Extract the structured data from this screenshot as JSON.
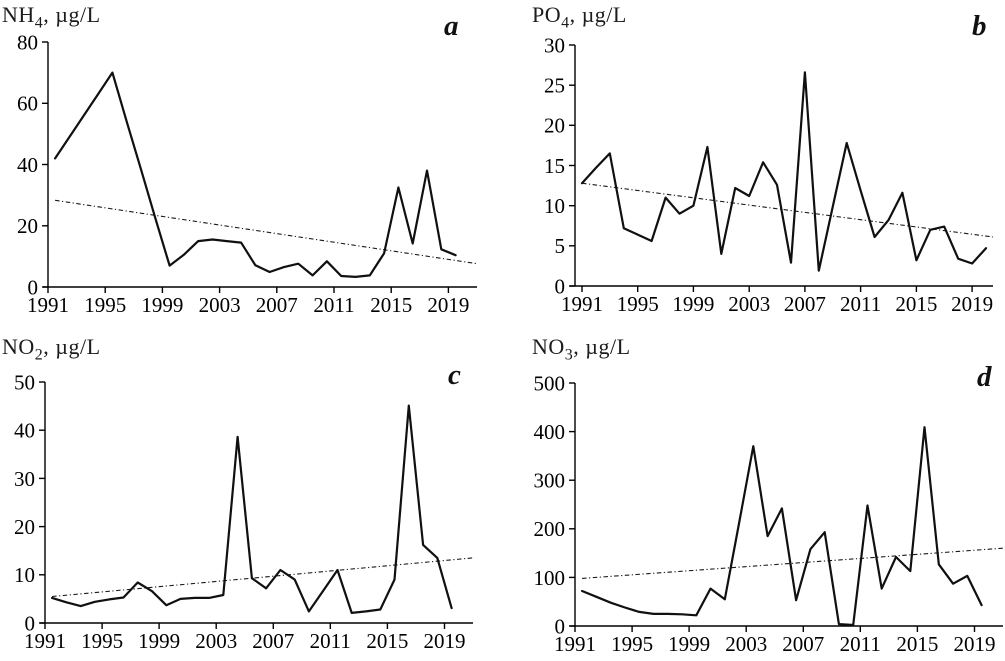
{
  "figure": {
    "background": "#ffffff",
    "panel_count": 4
  },
  "chart_data": [
    {
      "type": "line",
      "panel_label": "a",
      "title": {
        "prefix": "NH",
        "sub": "4",
        "unit": ", µg/L"
      },
      "x": [
        1991,
        1992,
        1993,
        1994,
        1995,
        1996,
        1997,
        1998,
        1999,
        2000,
        2001,
        2002,
        2003,
        2004,
        2005,
        2006,
        2007,
        2008,
        2009,
        2010,
        2011,
        2012,
        2013,
        2014,
        2015,
        2016,
        2017,
        2018,
        2019
      ],
      "values": [
        42,
        49,
        56,
        63,
        70,
        54,
        38.5,
        22.5,
        7,
        10.5,
        15,
        15.5,
        15,
        14.5,
        7.1,
        4.9,
        6.5,
        7.6,
        3.8,
        8.4,
        3.6,
        3.3,
        3.8,
        11,
        32.5,
        14.2,
        38,
        12.3,
        10.4
      ],
      "ylim": [
        0,
        80
      ],
      "yticks": [
        0,
        20,
        40,
        60,
        80
      ],
      "xticks": [
        1991,
        1995,
        1999,
        2003,
        2007,
        2011,
        2015,
        2019
      ],
      "trend": {
        "type": "linear-dashed",
        "start_value": 28.3,
        "end_value": 7.6
      },
      "colors": {
        "line": "#101010",
        "trend": "#1a1a1a"
      },
      "grid": false,
      "legend": false
    },
    {
      "type": "line",
      "panel_label": "b",
      "title": {
        "prefix": "PO",
        "sub": "4",
        "unit": ", µg/L"
      },
      "x": [
        1991,
        1992,
        1993,
        1994,
        1995,
        1996,
        1997,
        1998,
        1999,
        2000,
        2001,
        2002,
        2003,
        2004,
        2005,
        2006,
        2007,
        2008,
        2009,
        2010,
        2011,
        2012,
        2013,
        2014,
        2015,
        2016,
        2017,
        2018,
        2019,
        2020
      ],
      "values": [
        12.8,
        14.7,
        16.5,
        7.2,
        6.4,
        5.6,
        11,
        9,
        10,
        17.3,
        4,
        12.2,
        11.2,
        15.4,
        12.6,
        2.9,
        26.6,
        1.9,
        9.9,
        17.8,
        11.9,
        6.1,
        8.2,
        11.6,
        3.2,
        7,
        7.4,
        3.4,
        2.8,
        4.7
      ],
      "ylim": [
        0,
        30
      ],
      "yticks": [
        0,
        5,
        10,
        15,
        20,
        25,
        30
      ],
      "xticks": [
        1991,
        1995,
        1999,
        2003,
        2007,
        2011,
        2015,
        2019
      ],
      "trend": {
        "type": "linear-dashed",
        "start_value": 12.8,
        "end_value": 6.1
      },
      "colors": {
        "line": "#101010",
        "trend": "#1a1a1a"
      },
      "grid": false,
      "legend": false
    },
    {
      "type": "line",
      "panel_label": "c",
      "title": {
        "prefix": "NO",
        "sub": "2",
        "unit": ", µg/L"
      },
      "x": [
        1991,
        1992,
        1993,
        1994,
        1995,
        1996,
        1997,
        1998,
        1999,
        2000,
        2001,
        2002,
        2003,
        2004,
        2005,
        2006,
        2007,
        2008,
        2009,
        2010,
        2011,
        2012,
        2013,
        2014,
        2015,
        2016,
        2017,
        2018,
        2019
      ],
      "values": [
        5.2,
        4.3,
        3.5,
        4.4,
        4.9,
        5.3,
        8.4,
        6.6,
        3.7,
        5,
        5.2,
        5.2,
        5.8,
        38.6,
        9.3,
        7.2,
        11,
        9,
        2.4,
        6.7,
        11,
        2.1,
        2.4,
        2.8,
        9,
        45.1,
        16.2,
        13.5,
        3.1
      ],
      "ylim": [
        0,
        50
      ],
      "yticks": [
        0,
        10,
        20,
        30,
        40,
        50
      ],
      "xticks": [
        1991,
        1995,
        1999,
        2003,
        2007,
        2011,
        2015,
        2019
      ],
      "trend": {
        "type": "linear-dashed",
        "start_value": 5.5,
        "end_value": 13.5
      },
      "colors": {
        "line": "#101010",
        "trend": "#1a1a1a"
      },
      "grid": false,
      "legend": false
    },
    {
      "type": "line",
      "panel_label": "d",
      "title": {
        "prefix": "NO",
        "sub": "3",
        "unit": ", µg/L"
      },
      "x": [
        1991,
        1992,
        1993,
        1994,
        1995,
        1996,
        1997,
        1998,
        1999,
        2000,
        2001,
        2002,
        2003,
        2004,
        2005,
        2006,
        2007,
        2008,
        2009,
        2010,
        2011,
        2012,
        2013,
        2014,
        2015,
        2016,
        2017,
        2018,
        2019
      ],
      "values": [
        72,
        60,
        48,
        38,
        29,
        25,
        25,
        24,
        22,
        77,
        55,
        212,
        370,
        185,
        242,
        53,
        158,
        193,
        4,
        2,
        248,
        77,
        142,
        113,
        409,
        127,
        87,
        103,
        43
      ],
      "ylim": [
        0,
        500
      ],
      "yticks": [
        0,
        100,
        200,
        300,
        400,
        500
      ],
      "xticks": [
        1991,
        1995,
        1999,
        2003,
        2007,
        2011,
        2015,
        2019
      ],
      "trend": {
        "type": "linear-dashed",
        "start_value": 98,
        "end_value": 160
      },
      "colors": {
        "line": "#101010",
        "trend": "#1a1a1a"
      },
      "grid": false,
      "legend": false
    }
  ]
}
